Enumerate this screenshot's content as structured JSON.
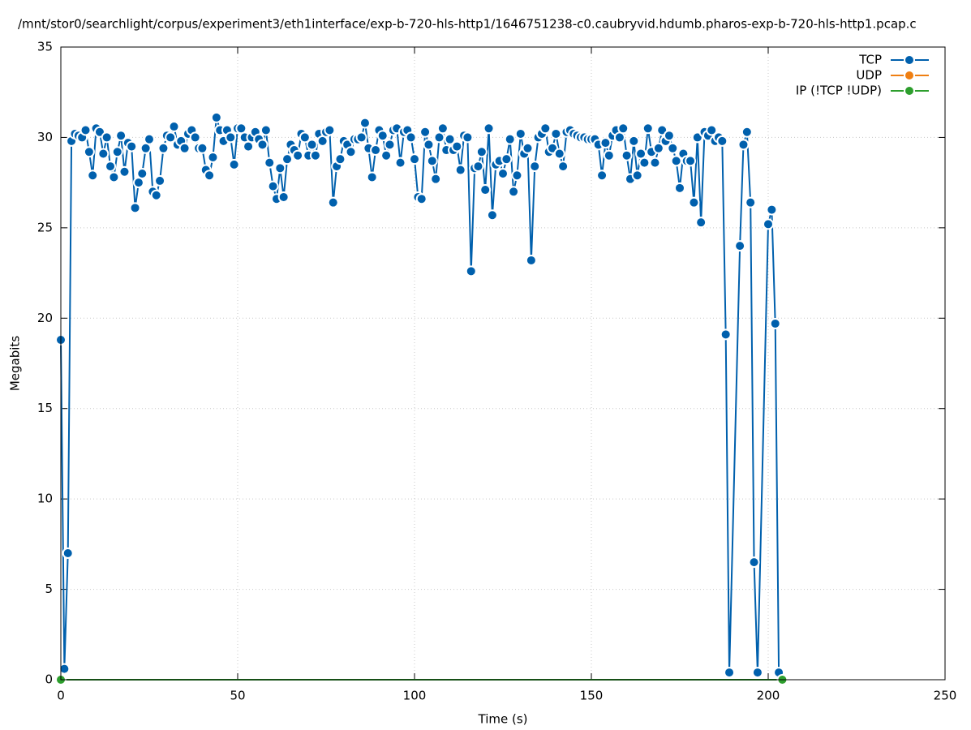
{
  "chart_data": {
    "type": "line",
    "title": "/mnt/stor0/searchlight/corpus/experiment3/eth1interface/exp-b-720-hls-http1/1646751238-c0.caubryvid.hdumb.pharos-exp-b-720-hls-http1.pcap.c",
    "x_label": "Time (s)",
    "y_label": "Megabits",
    "xlim": [
      0,
      250
    ],
    "xticks": [
      0,
      50,
      100,
      150,
      200,
      250
    ],
    "ylim": [
      0,
      35
    ],
    "yticks": [
      0,
      5,
      10,
      15,
      20,
      25,
      30,
      35
    ],
    "grid": true,
    "legend": "top-right",
    "series": [
      {
        "name": "TCP",
        "color": "#0060ad",
        "x": [
          0,
          1,
          2,
          3,
          4,
          5,
          6,
          7,
          8,
          9,
          10,
          11,
          12,
          13,
          14,
          15,
          16,
          17,
          18,
          19,
          20,
          21,
          22,
          23,
          24,
          25,
          26,
          27,
          28,
          29,
          30,
          31,
          32,
          33,
          34,
          35,
          36,
          37,
          38,
          39,
          40,
          41,
          42,
          43,
          44,
          45,
          46,
          47,
          48,
          49,
          50,
          51,
          52,
          53,
          54,
          55,
          56,
          57,
          58,
          59,
          60,
          61,
          62,
          63,
          64,
          65,
          66,
          67,
          68,
          69,
          70,
          71,
          72,
          73,
          74,
          75,
          76,
          77,
          78,
          79,
          80,
          81,
          82,
          83,
          84,
          85,
          86,
          87,
          88,
          89,
          90,
          91,
          92,
          93,
          94,
          95,
          96,
          97,
          98,
          99,
          100,
          101,
          102,
          103,
          104,
          105,
          106,
          107,
          108,
          109,
          110,
          111,
          112,
          113,
          114,
          115,
          116,
          117,
          118,
          119,
          120,
          121,
          122,
          123,
          124,
          125,
          126,
          127,
          128,
          129,
          130,
          131,
          132,
          133,
          134,
          135,
          136,
          137,
          138,
          139,
          140,
          141,
          142,
          143,
          144,
          145,
          146,
          147,
          148,
          149,
          150,
          151,
          152,
          153,
          154,
          155,
          156,
          157,
          158,
          159,
          160,
          161,
          162,
          163,
          164,
          165,
          166,
          167,
          168,
          169,
          170,
          171,
          172,
          173,
          174,
          175,
          176,
          177,
          178,
          179,
          180,
          181,
          182,
          183,
          184,
          185,
          186,
          187,
          188,
          189,
          192,
          193,
          194,
          195,
          196,
          197,
          200,
          201,
          202,
          203
        ],
        "values": [
          18.8,
          0.6,
          7.0,
          29.8,
          30.2,
          30.1,
          30.0,
          30.4,
          29.2,
          27.9,
          30.5,
          30.3,
          29.1,
          30.0,
          28.4,
          27.8,
          29.2,
          30.1,
          28.1,
          29.7,
          29.5,
          26.1,
          27.5,
          28.0,
          29.4,
          29.9,
          27.0,
          26.8,
          27.6,
          29.4,
          30.1,
          30.0,
          30.6,
          29.6,
          29.8,
          29.4,
          30.2,
          30.4,
          30.0,
          29.4,
          29.4,
          28.2,
          27.9,
          28.9,
          31.1,
          30.4,
          29.8,
          30.4,
          30.0,
          28.5,
          30.5,
          30.5,
          30.0,
          29.5,
          30.0,
          30.3,
          29.9,
          29.6,
          30.4,
          28.6,
          27.3,
          26.6,
          28.3,
          26.7,
          28.8,
          29.6,
          29.3,
          29.0,
          30.2,
          30.0,
          29.0,
          29.6,
          29.0,
          30.2,
          29.8,
          30.3,
          30.4,
          26.4,
          28.4,
          28.8,
          29.8,
          29.6,
          29.2,
          29.9,
          29.9,
          30.0,
          30.8,
          29.4,
          27.8,
          29.3,
          30.4,
          30.1,
          29.0,
          29.6,
          30.4,
          30.5,
          28.6,
          30.3,
          30.4,
          30.0,
          28.8,
          26.7,
          26.6,
          30.3,
          29.6,
          28.7,
          27.7,
          30.0,
          30.5,
          29.3,
          29.9,
          29.3,
          29.5,
          28.2,
          30.1,
          30.0,
          22.6,
          28.3,
          28.4,
          29.2,
          27.1,
          30.5,
          25.7,
          28.5,
          28.7,
          28.0,
          28.8,
          29.9,
          27.0,
          27.9,
          30.2,
          29.1,
          29.4,
          23.2,
          28.4,
          30.0,
          30.2,
          30.5,
          29.2,
          29.4,
          30.2,
          29.1,
          28.4,
          30.3,
          30.4,
          30.2,
          30.1,
          30.0,
          30.0,
          29.9,
          29.9,
          29.9,
          29.6,
          27.9,
          29.7,
          29.0,
          30.1,
          30.4,
          30.0,
          30.5,
          29.0,
          27.7,
          29.8,
          27.9,
          29.1,
          28.6,
          30.5,
          29.2,
          28.6,
          29.4,
          30.4,
          29.8,
          30.1,
          29.4,
          28.7,
          27.2,
          29.1,
          28.7,
          28.7,
          26.4,
          30.0,
          25.3,
          30.3,
          30.1,
          30.4,
          29.8,
          30.0,
          29.8,
          19.1,
          0.4,
          24.0,
          29.6,
          30.3,
          26.4,
          6.5,
          0.4,
          25.2,
          26.0,
          19.7,
          0.4
        ]
      },
      {
        "name": "UDP",
        "color": "#ef7f12",
        "x": [],
        "values": []
      },
      {
        "name": "IP (!TCP  !UDP)",
        "color": "#2d9e2d",
        "x": [
          0,
          204
        ],
        "values": [
          0,
          0
        ]
      }
    ]
  }
}
